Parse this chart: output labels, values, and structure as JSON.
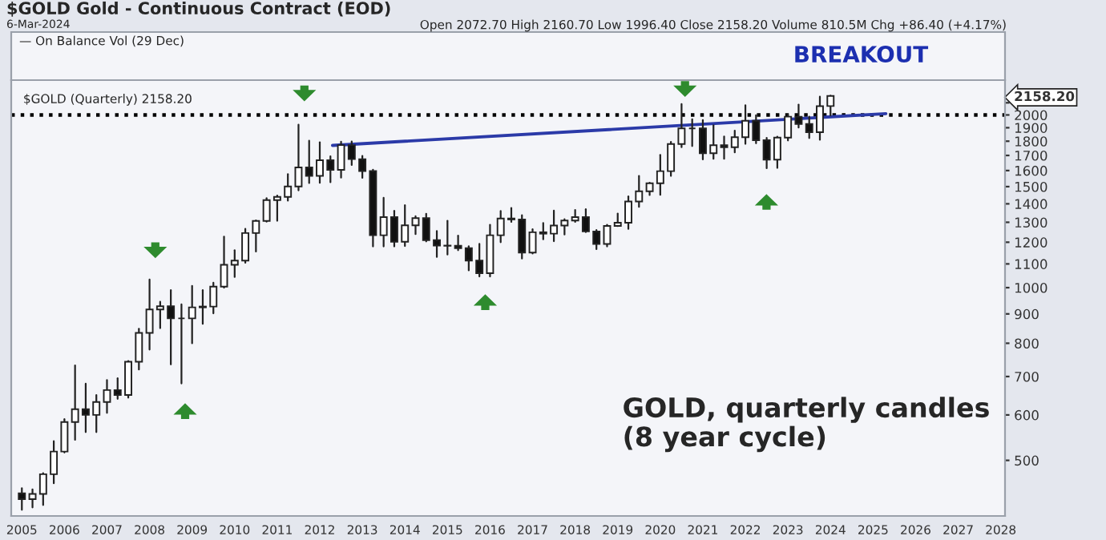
{
  "chart_data": {
    "type": "candlestick",
    "title": "$GOLD Gold - Continuous Contract (EOD)",
    "subtitle": "6-Mar-2024",
    "annotations": [
      "Open 2072.70 High 2160.70 Low 1996.40 Close 2158.20 Volume 810.5M Chg +86.40 (+4.17%)",
      "— On Balance Vol (29 Dec)",
      "BREAKOUT",
      "$GOLD (Quarterly) 2158.20",
      "GOLD, quarterly candles\n(8 year cycle)"
    ],
    "x": [
      2005.0,
      2005.25,
      2005.5,
      2005.75,
      2006.0,
      2006.25,
      2006.5,
      2006.75,
      2007.0,
      2007.25,
      2007.5,
      2007.75,
      2008.0,
      2008.25,
      2008.5,
      2008.75,
      2009.0,
      2009.25,
      2009.5,
      2009.75,
      2010.0,
      2010.25,
      2010.5,
      2010.75,
      2011.0,
      2011.25,
      2011.5,
      2011.75,
      2012.0,
      2012.25,
      2012.5,
      2012.75,
      2013.0,
      2013.25,
      2013.5,
      2013.75,
      2014.0,
      2014.25,
      2014.5,
      2014.75,
      2015.0,
      2015.25,
      2015.5,
      2015.75,
      2016.0,
      2016.25,
      2016.5,
      2016.75,
      2017.0,
      2017.25,
      2017.5,
      2017.75,
      2018.0,
      2018.25,
      2018.5,
      2018.75,
      2019.0,
      2019.25,
      2019.5,
      2019.75,
      2020.0,
      2020.25,
      2020.5,
      2020.75,
      2021.0,
      2021.25,
      2021.5,
      2021.75,
      2022.0,
      2022.25,
      2022.5,
      2022.75,
      2023.0,
      2023.25,
      2023.5,
      2023.75,
      2024.0
    ],
    "ohlc": [
      [
        438,
        447,
        410,
        428
      ],
      [
        428,
        445,
        414,
        437
      ],
      [
        437,
        475,
        418,
        473
      ],
      [
        473,
        540,
        456,
        518
      ],
      [
        518,
        590,
        516,
        583
      ],
      [
        583,
        732,
        543,
        614
      ],
      [
        614,
        680,
        560,
        600
      ],
      [
        600,
        650,
        560,
        632
      ],
      [
        632,
        690,
        605,
        663
      ],
      [
        663,
        695,
        640,
        650
      ],
      [
        650,
        745,
        643,
        743
      ],
      [
        743,
        848,
        720,
        834
      ],
      [
        834,
        1033,
        780,
        916
      ],
      [
        916,
        945,
        850,
        928
      ],
      [
        928,
        990,
        735,
        884
      ],
      [
        884,
        935,
        681,
        884
      ],
      [
        884,
        1007,
        800,
        924
      ],
      [
        924,
        990,
        865,
        927
      ],
      [
        927,
        1020,
        902,
        1004
      ],
      [
        1004,
        1227,
        1000,
        1096
      ],
      [
        1096,
        1162,
        1044,
        1115
      ],
      [
        1115,
        1266,
        1105,
        1245
      ],
      [
        1245,
        1310,
        1156,
        1307
      ],
      [
        1307,
        1432,
        1303,
        1421
      ],
      [
        1421,
        1447,
        1308,
        1439
      ],
      [
        1439,
        1577,
        1418,
        1501
      ],
      [
        1501,
        1923,
        1478,
        1620
      ],
      [
        1620,
        1803,
        1522,
        1566
      ],
      [
        1566,
        1792,
        1523,
        1668
      ],
      [
        1668,
        1694,
        1527,
        1604
      ],
      [
        1604,
        1796,
        1555,
        1772
      ],
      [
        1772,
        1798,
        1636,
        1675
      ],
      [
        1675,
        1697,
        1554,
        1597
      ],
      [
        1597,
        1605,
        1180,
        1234
      ],
      [
        1234,
        1434,
        1180,
        1327
      ],
      [
        1327,
        1361,
        1180,
        1202
      ],
      [
        1202,
        1392,
        1182,
        1284
      ],
      [
        1284,
        1332,
        1240,
        1322
      ],
      [
        1322,
        1345,
        1204,
        1210
      ],
      [
        1210,
        1255,
        1131,
        1184
      ],
      [
        1184,
        1308,
        1142,
        1183
      ],
      [
        1183,
        1232,
        1162,
        1172
      ],
      [
        1172,
        1181,
        1072,
        1115
      ],
      [
        1115,
        1192,
        1046,
        1060
      ],
      [
        1060,
        1287,
        1046,
        1234
      ],
      [
        1234,
        1360,
        1200,
        1320
      ],
      [
        1320,
        1377,
        1302,
        1315
      ],
      [
        1315,
        1337,
        1124,
        1151
      ],
      [
        1151,
        1264,
        1147,
        1249
      ],
      [
        1249,
        1296,
        1214,
        1242
      ],
      [
        1242,
        1362,
        1205,
        1283
      ],
      [
        1283,
        1316,
        1238,
        1309
      ],
      [
        1309,
        1366,
        1302,
        1327
      ],
      [
        1327,
        1370,
        1250,
        1253
      ],
      [
        1253,
        1260,
        1167,
        1192
      ],
      [
        1192,
        1287,
        1180,
        1281
      ],
      [
        1281,
        1346,
        1280,
        1298
      ],
      [
        1298,
        1442,
        1266,
        1413
      ],
      [
        1413,
        1566,
        1383,
        1472
      ],
      [
        1472,
        1524,
        1450,
        1520
      ],
      [
        1520,
        1704,
        1451,
        1596
      ],
      [
        1596,
        1795,
        1566,
        1780
      ],
      [
        1780,
        2089,
        1757,
        1895
      ],
      [
        1895,
        1966,
        1765,
        1895
      ],
      [
        1895,
        1960,
        1673,
        1715
      ],
      [
        1715,
        1919,
        1677,
        1771
      ],
      [
        1771,
        1834,
        1677,
        1757
      ],
      [
        1757,
        1878,
        1721,
        1829
      ],
      [
        1829,
        2079,
        1781,
        1954
      ],
      [
        1954,
        1998,
        1785,
        1807
      ],
      [
        1807,
        1824,
        1615,
        1672
      ],
      [
        1672,
        1833,
        1617,
        1826
      ],
      [
        1826,
        2003,
        1805,
        1986
      ],
      [
        1986,
        2085,
        1901,
        1929
      ],
      [
        1929,
        1987,
        1823,
        1866
      ],
      [
        1866,
        2152,
        1810,
        2072
      ],
      [
        2072.7,
        2160.7,
        1996.4,
        2158.2
      ]
    ],
    "series": [
      {
        "type": "line",
        "x": [
          2012.3,
          2025.3
        ],
        "values": [
          1770,
          2010
        ],
        "color": "#2b3aa8"
      }
    ],
    "ref_lines": [
      {
        "axis": "y",
        "value": 2000,
        "color": "#000000",
        "line_style": "dotted"
      }
    ],
    "log": true,
    "ylim": [
      400,
      2300
    ],
    "yticks": [
      500,
      600,
      700,
      800,
      900,
      1000,
      1100,
      1200,
      1300,
      1400,
      1500,
      1600,
      1700,
      1800,
      1900,
      2000,
      {
        "value": 2100,
        "label": null
      },
      {
        "value": 2158.2,
        "label": "2158.20"
      }
    ],
    "xlim": [
      2004.75,
      2028.1
    ],
    "xticks": [
      2005,
      2006,
      2007,
      2008,
      2009,
      2010,
      2011,
      2012,
      2013,
      2014,
      2015,
      2016,
      2017,
      2018,
      2019,
      2020,
      2021,
      2022,
      2023,
      2024,
      2025,
      2026,
      2027,
      2028
    ]
  }
}
